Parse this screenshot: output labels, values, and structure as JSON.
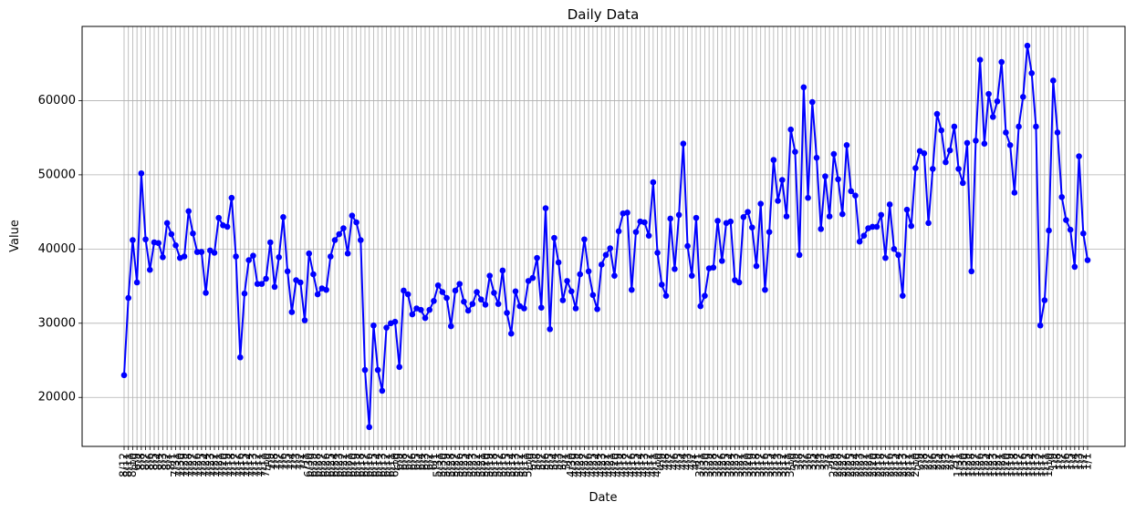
{
  "chart_data": {
    "type": "line",
    "title": "Daily Data",
    "x_label": "Date",
    "y_label": "Value",
    "categories": [
      "8/12",
      "8/11",
      "8/10",
      "8/9",
      "8/8",
      "8/7",
      "8/6",
      "8/5",
      "8/4",
      "8/3",
      "8/2",
      "8/1",
      "7/31",
      "7/30",
      "7/29",
      "7/28",
      "7/27",
      "7/26",
      "7/25",
      "7/24",
      "7/23",
      "7/22",
      "7/21",
      "7/20",
      "7/19",
      "7/18",
      "7/17",
      "7/16",
      "7/15",
      "7/14",
      "7/13",
      "7/12",
      "7/11",
      "7/10",
      "7/9",
      "7/8",
      "7/7",
      "7/6",
      "7/5",
      "7/4",
      "7/3",
      "7/2",
      "7/1",
      "6/30",
      "6/29",
      "6/28",
      "6/27",
      "6/26",
      "6/25",
      "6/24",
      "6/23",
      "6/22",
      "6/21",
      "6/20",
      "6/19",
      "6/18",
      "6/17",
      "6/16",
      "6/15",
      "6/14",
      "6/13",
      "6/12",
      "6/11",
      "6/10",
      "6/9",
      "6/8",
      "6/7",
      "6/6",
      "6/5",
      "6/4",
      "6/3",
      "6/2",
      "6/1",
      "5/31",
      "5/30",
      "5/29",
      "5/28",
      "5/27",
      "5/26",
      "5/25",
      "5/24",
      "5/23",
      "5/22",
      "5/21",
      "5/20",
      "5/19",
      "5/18",
      "5/17",
      "5/16",
      "5/15",
      "5/14",
      "5/13",
      "5/12",
      "5/11",
      "5/10",
      "5/9",
      "5/8",
      "5/7",
      "5/6",
      "5/5",
      "5/4",
      "5/3",
      "5/2",
      "5/1",
      "4/30",
      "4/29",
      "4/28",
      "4/27",
      "4/26",
      "4/25",
      "4/24",
      "4/23",
      "4/22",
      "4/21",
      "4/20",
      "4/19",
      "4/18",
      "4/17",
      "4/16",
      "4/15",
      "4/14",
      "4/13",
      "4/12",
      "4/11",
      "4/10",
      "4/9",
      "4/8",
      "4/7",
      "4/6",
      "4/5",
      "4/4",
      "4/3",
      "4/2",
      "4/1",
      "3/31",
      "3/30",
      "3/29",
      "3/28",
      "3/27",
      "3/26",
      "3/25",
      "3/24",
      "3/23",
      "3/22",
      "3/21",
      "3/20",
      "3/19",
      "3/18",
      "3/17",
      "3/16",
      "3/15",
      "3/14",
      "3/13",
      "3/12",
      "3/11",
      "3/10",
      "3/9",
      "3/8",
      "3/7",
      "3/6",
      "3/5",
      "3/4",
      "3/3",
      "3/2",
      "3/1",
      "2/29",
      "2/28",
      "2/27",
      "2/26",
      "2/25",
      "2/24",
      "2/23",
      "2/22",
      "2/21",
      "2/20",
      "2/19",
      "2/18",
      "2/17",
      "2/16",
      "2/15",
      "2/14",
      "2/13",
      "2/12",
      "2/11",
      "2/10",
      "2/9",
      "2/8",
      "2/7",
      "2/6",
      "2/5",
      "2/4",
      "2/3",
      "2/2",
      "2/1",
      "1/31",
      "1/30",
      "1/29",
      "1/28",
      "1/27",
      "1/26",
      "1/25",
      "1/24",
      "1/23",
      "1/22",
      "1/21",
      "1/20",
      "1/19",
      "1/18",
      "1/17",
      "1/16",
      "1/15",
      "1/14",
      "1/13",
      "1/12",
      "1/11",
      "1/10",
      "1/9",
      "1/8",
      "1/7",
      "1/6",
      "1/5",
      "1/4",
      "1/3",
      "1/2",
      "1/1"
    ],
    "values": [
      23000,
      33400,
      41200,
      35500,
      50200,
      41300,
      37200,
      40900,
      40800,
      38900,
      43500,
      42000,
      40500,
      38800,
      39000,
      45100,
      42100,
      39600,
      39600,
      34100,
      39800,
      39500,
      44200,
      43200,
      43000,
      46900,
      39000,
      25400,
      34000,
      38500,
      39100,
      35300,
      35300,
      36000,
      40900,
      34900,
      38900,
      44300,
      37000,
      31500,
      35800,
      35500,
      30400,
      39400,
      36600,
      33900,
      34700,
      34500,
      39000,
      41200,
      42000,
      42800,
      39400,
      44500,
      43600,
      41200,
      23700,
      16000,
      29700,
      23700,
      20900,
      29400,
      30000,
      30200,
      24100,
      34400,
      33900,
      31200,
      32000,
      31800,
      30700,
      31800,
      33000,
      35100,
      34200,
      33400,
      29600,
      34400,
      35300,
      32900,
      31700,
      32600,
      34200,
      33200,
      32500,
      36400,
      34100,
      32600,
      37100,
      31400,
      28600,
      34300,
      32300,
      32000,
      35700,
      36100,
      38800,
      32100,
      45500,
      29200,
      41500,
      38200,
      33100,
      35700,
      34300,
      32000,
      36600,
      41300,
      37000,
      33800,
      31900,
      37900,
      39200,
      40100,
      36400,
      42400,
      44800,
      44900,
      34500,
      42300,
      43700,
      43600,
      41800,
      49000,
      39500,
      35200,
      33700,
      44100,
      37300,
      44600,
      54200,
      40400,
      36400,
      44200,
      32300,
      33700,
      37400,
      37500,
      43800,
      38400,
      43500,
      43700,
      35800,
      35500,
      44300,
      45000,
      42900,
      37700,
      46100,
      34500,
      42300,
      52000,
      46500,
      49300,
      44400,
      56100,
      53100,
      39200,
      61800,
      46900,
      59800,
      52300,
      42700,
      49800,
      44400,
      52800,
      49400,
      44700,
      54000,
      47800,
      47200,
      41000,
      41800,
      42800,
      43000,
      43000,
      44600,
      38800,
      46000,
      40000,
      39200,
      33700,
      45300,
      43100,
      50900,
      53200,
      52900,
      43500,
      50800,
      58200,
      56000,
      51700,
      53300,
      56500,
      50800,
      48900,
      54300,
      37000,
      54600,
      65500,
      54200,
      60900,
      57800,
      59900,
      65200,
      55700,
      54000,
      47600,
      56500,
      60500,
      67400,
      63700,
      56500,
      29700,
      33100,
      42500,
      62700,
      55700,
      47000,
      43900,
      42600,
      37600,
      52500,
      42100,
      38500
    ],
    "color": "#0000ff",
    "ylim": [
      13400,
      70000
    ],
    "yticks": [
      20000,
      30000,
      40000,
      50000,
      60000
    ],
    "grid": true
  }
}
